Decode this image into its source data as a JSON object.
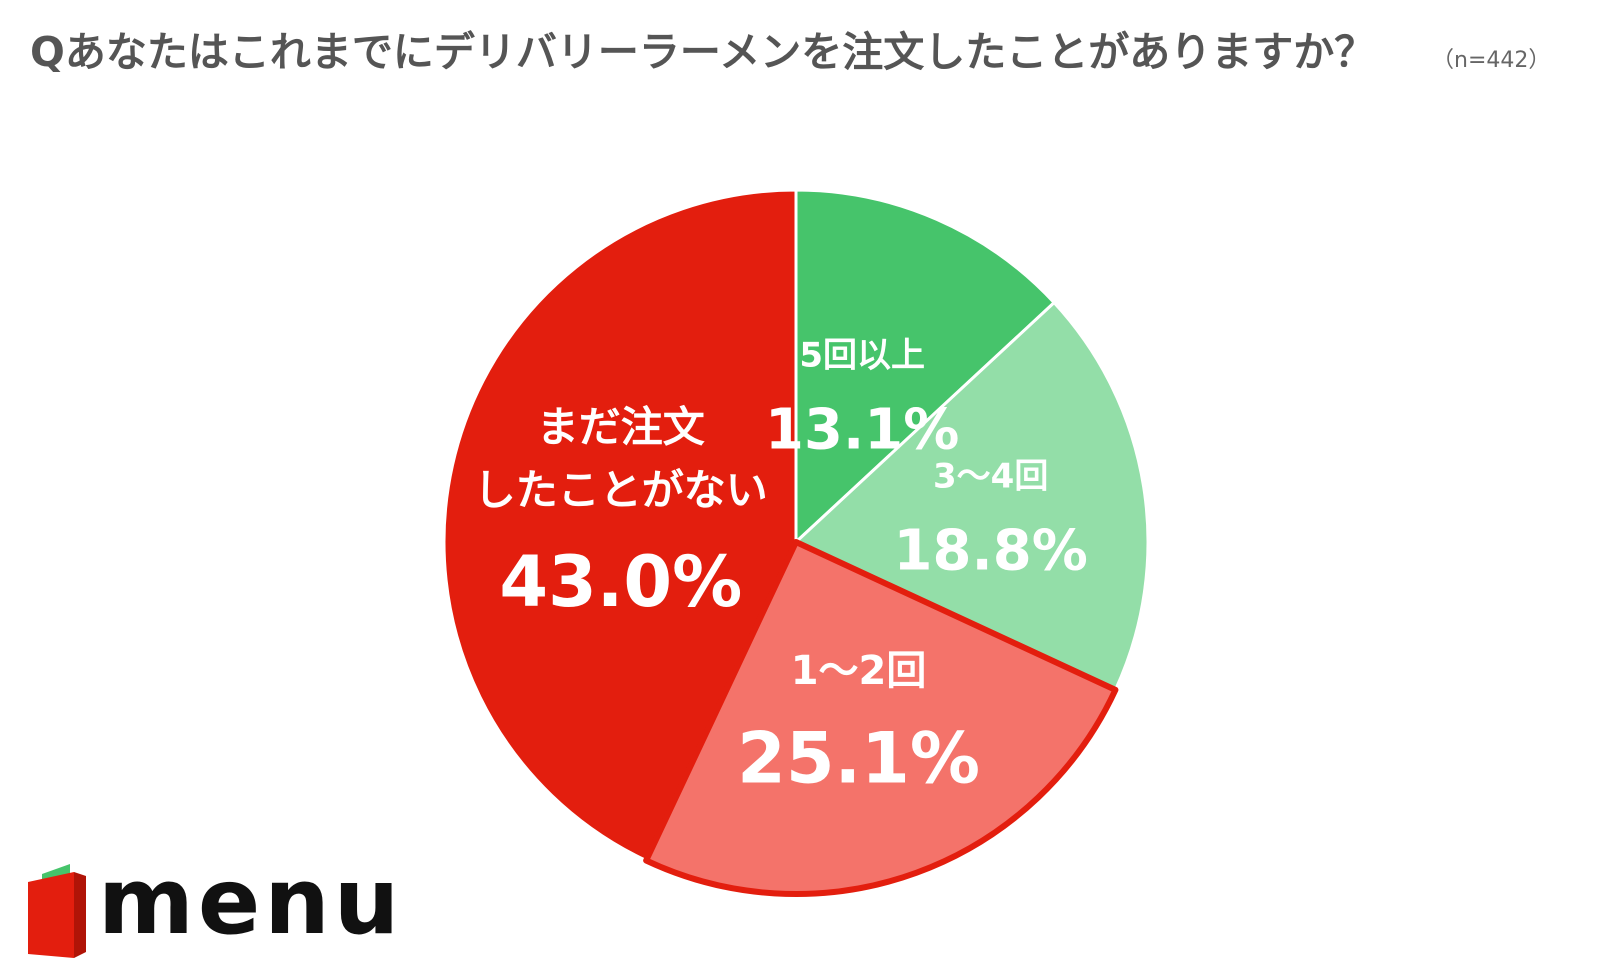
{
  "title": "Qあなたはこれまでにデリバリーラーメンを注文したことがありますか？",
  "sample_size": "（n=442）",
  "logo": {
    "text": "menu",
    "icon": "menu-logo-icon"
  },
  "chart_data": {
    "type": "pie",
    "start_angle_deg": 0,
    "direction": "clockwise",
    "slices": [
      {
        "label": "5回以上",
        "value": 13.1,
        "value_label": "13.1%",
        "color": "#46c46b"
      },
      {
        "label": "3〜4回",
        "value": 18.8,
        "value_label": "18.8%",
        "color": "#93dea8"
      },
      {
        "label": "1〜2回",
        "value": 25.1,
        "value_label": "25.1%",
        "color": "#f4736a",
        "highlight": true
      },
      {
        "label_lines": [
          "まだ注文",
          "したことがない"
        ],
        "label": "まだ注文したことがない",
        "value": 43.0,
        "value_label": "43.0%",
        "color": "#e31e0e"
      }
    ],
    "highlight_stroke": "#e31e0e"
  }
}
